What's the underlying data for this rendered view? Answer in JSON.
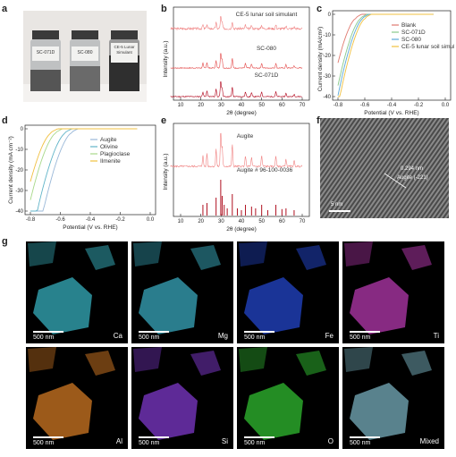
{
  "panels": {
    "a": "a",
    "b": "b",
    "c": "c",
    "d": "d",
    "e": "e",
    "f": "f",
    "g": "g"
  },
  "photo_a": {
    "vials": [
      "SC-071D",
      "SC-080",
      "CE-5 Lunar Simulant"
    ]
  },
  "chart_b": {
    "ylabel": "Intensity (a.u.)",
    "xlabel": "2θ (degree)",
    "ticks": [
      "10",
      "20",
      "30",
      "40",
      "50",
      "60",
      "70"
    ],
    "series": [
      "CE-5 lunar soil simulant",
      "SC-080",
      "SC-071D"
    ],
    "colors": [
      "#f08080",
      "#e34848",
      "#b00018"
    ]
  },
  "chart_c": {
    "ylabel": "Current density (mA/cm²)",
    "xlabel": "Potential (V vs. RHE)",
    "xticks": [
      "-0.8",
      "-0.6",
      "-0.4",
      "-0.2",
      "0.0"
    ],
    "yticks": [
      "0",
      "-10",
      "-20",
      "-30",
      "-40"
    ],
    "legend": [
      "Blank",
      "SC-071D",
      "SC-080",
      "CE-5 lunar soil simulant"
    ],
    "colors": [
      "#e07a70",
      "#88c98a",
      "#5aa8d8",
      "#f0c040"
    ]
  },
  "chart_d": {
    "ylabel": "Current density (mA cm⁻²)",
    "xlabel": "Potential (V vs. RHE)",
    "xticks": [
      "-0.8",
      "-0.6",
      "-0.4",
      "-0.2",
      "0.0"
    ],
    "yticks": [
      "0",
      "-10",
      "-20",
      "-30",
      "-40"
    ],
    "legend": [
      "Augite",
      "Olivine",
      "Plagioclase",
      "Ilmenite"
    ],
    "colors": [
      "#9ab8d8",
      "#60b4c8",
      "#a8d88a",
      "#f0c040"
    ]
  },
  "chart_e": {
    "ylabel": "Intensity (a.u.)",
    "xlabel": "2θ (degree)",
    "ticks": [
      "10",
      "20",
      "30",
      "40",
      "50",
      "60",
      "70"
    ],
    "label_top": "Augite",
    "label_ref": "Augite # 96-100-0036",
    "color_top": "#f08080",
    "color_ref": "#b01020"
  },
  "image_f": {
    "spacing": "0.294 nm",
    "plane": "Augite (-221)",
    "scale": "5 nm"
  },
  "eds": {
    "scale": "500 nm",
    "tiles": [
      {
        "el": "Ca",
        "color": "#3ec8d8"
      },
      {
        "el": "Mg",
        "color": "#40c0d8"
      },
      {
        "el": "Fe",
        "color": "#2850e8"
      },
      {
        "el": "Ti",
        "color": "#d040c8"
      },
      {
        "el": "Al",
        "color": "#f08a28"
      },
      {
        "el": "Si",
        "color": "#9040e8"
      },
      {
        "el": "O",
        "color": "#38d838"
      },
      {
        "el": "Mixed",
        "color": "#88c8d8"
      }
    ]
  }
}
